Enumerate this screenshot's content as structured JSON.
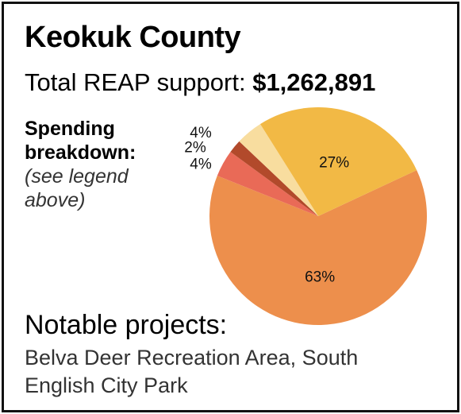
{
  "county": "Keokuk County",
  "total": {
    "label": "Total REAP support:",
    "amount": "$1,262,891"
  },
  "breakdown": {
    "heading_line1": "Spending",
    "heading_line2": "breakdown:",
    "note_line1": "(see legend",
    "note_line2": "above)"
  },
  "projects": {
    "heading": "Notable projects:",
    "list": "Belva Deer Recreation Area, South English City Park"
  },
  "chart_data": {
    "type": "pie",
    "slices": [
      {
        "label": "63%",
        "value": 63,
        "color": "#ED8F4C"
      },
      {
        "label": "4%",
        "value": 4,
        "color": "#E96A57"
      },
      {
        "label": "2%",
        "value": 2,
        "color": "#B24A2B"
      },
      {
        "label": "4%",
        "value": 4,
        "color": "#F8DD9F"
      },
      {
        "label": "27%",
        "value": 27,
        "color": "#F2B945"
      }
    ]
  }
}
